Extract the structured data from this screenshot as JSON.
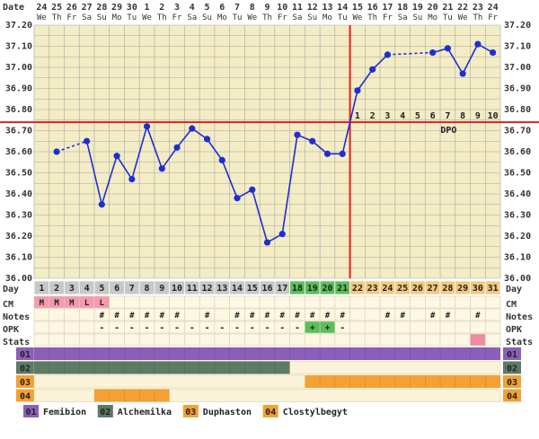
{
  "chart_data": {
    "type": "line",
    "corner_label": "Date",
    "dates": [
      {
        "num": "24",
        "dow": "We"
      },
      {
        "num": "25",
        "dow": "Th"
      },
      {
        "num": "26",
        "dow": "Fr"
      },
      {
        "num": "27",
        "dow": "Sa"
      },
      {
        "num": "28",
        "dow": "Su"
      },
      {
        "num": "29",
        "dow": "Mo"
      },
      {
        "num": "30",
        "dow": "Tu"
      },
      {
        "num": "1",
        "dow": "We"
      },
      {
        "num": "2",
        "dow": "Th"
      },
      {
        "num": "3",
        "dow": "Fr"
      },
      {
        "num": "4",
        "dow": "Sa"
      },
      {
        "num": "5",
        "dow": "Su"
      },
      {
        "num": "6",
        "dow": "Mo"
      },
      {
        "num": "7",
        "dow": "Tu"
      },
      {
        "num": "8",
        "dow": "We"
      },
      {
        "num": "9",
        "dow": "Th"
      },
      {
        "num": "10",
        "dow": "Fr"
      },
      {
        "num": "11",
        "dow": "Sa"
      },
      {
        "num": "12",
        "dow": "Su"
      },
      {
        "num": "13",
        "dow": "Mo"
      },
      {
        "num": "14",
        "dow": "Tu"
      },
      {
        "num": "15",
        "dow": "We"
      },
      {
        "num": "16",
        "dow": "Th"
      },
      {
        "num": "17",
        "dow": "Fr"
      },
      {
        "num": "18",
        "dow": "Sa"
      },
      {
        "num": "19",
        "dow": "Su"
      },
      {
        "num": "20",
        "dow": "Mo"
      },
      {
        "num": "21",
        "dow": "Tu"
      },
      {
        "num": "22",
        "dow": "We"
      },
      {
        "num": "23",
        "dow": "Th"
      },
      {
        "num": "24",
        "dow": "Fr"
      }
    ],
    "ylim": [
      36.0,
      37.2
    ],
    "y_ticks": [
      "36.00",
      "36.10",
      "36.20",
      "36.30",
      "36.40",
      "36.50",
      "36.60",
      "36.70",
      "36.80",
      "36.90",
      "37.00",
      "37.10",
      "37.20"
    ],
    "temperatures": [
      null,
      36.6,
      null,
      36.65,
      36.35,
      36.58,
      36.47,
      36.72,
      36.52,
      36.62,
      36.71,
      36.66,
      36.56,
      36.38,
      36.42,
      36.17,
      36.21,
      36.68,
      36.65,
      36.59,
      36.59,
      36.89,
      36.99,
      37.06,
      null,
      null,
      37.07,
      37.09,
      36.97,
      37.11,
      37.07
    ],
    "coverline": 36.74,
    "ovulation_day": 21,
    "dpo_label": "DPO",
    "dpo_numbers": [
      "1",
      "2",
      "3",
      "4",
      "5",
      "6",
      "7",
      "8",
      "9",
      "10"
    ],
    "row_labels": {
      "day": "Day",
      "cm": "CM",
      "notes": "Notes",
      "opk": "OPK",
      "stats": "Stats"
    },
    "cycle_days": [
      "1",
      "2",
      "3",
      "4",
      "5",
      "6",
      "7",
      "8",
      "9",
      "10",
      "11",
      "12",
      "13",
      "14",
      "15",
      "16",
      "17",
      "18",
      "19",
      "20",
      "21",
      "22",
      "23",
      "24",
      "25",
      "26",
      "27",
      "28",
      "29",
      "30",
      "31"
    ],
    "cm": [
      "M",
      "M",
      "M",
      "L",
      "L",
      "",
      "",
      "",
      "",
      "",
      "",
      "",
      "",
      "",
      "",
      "",
      "",
      "",
      "",
      "",
      "",
      "",
      "",
      "",
      "",
      "",
      "",
      "",
      "",
      "",
      ""
    ],
    "notes": [
      "",
      "",
      "",
      "",
      "#",
      "#",
      "#",
      "#",
      "#",
      "#",
      "",
      "#",
      "",
      "#",
      "#",
      "#",
      "#",
      "#",
      "#",
      "#",
      "#",
      "",
      "",
      "#",
      "#",
      "",
      "#",
      "#",
      "",
      "#",
      ""
    ],
    "opk": [
      "",
      "",
      "",
      "",
      "-",
      "-",
      "-",
      "-",
      "-",
      "-",
      "-",
      "-",
      "-",
      "-",
      "-",
      "-",
      "-",
      "-",
      "+",
      "+",
      "-",
      "",
      "",
      "",
      "",
      "",
      "",
      "",
      "",
      "",
      ""
    ],
    "stats_marked_day": 30,
    "medications": [
      {
        "id": "01",
        "name": "Femibion",
        "color": "#8b5fb8",
        "start": 1,
        "end": 31
      },
      {
        "id": "02",
        "name": "Alchemilka",
        "color": "#5d7a66",
        "start": 1,
        "end": 17
      },
      {
        "id": "03",
        "name": "Duphaston",
        "color": "#f4a033",
        "start": 19,
        "end": 31
      },
      {
        "id": "04",
        "name": "Clostylbegyt",
        "color": "#f4a033",
        "start": 5,
        "end": 9
      }
    ],
    "colors": {
      "grid_bg": "#f3ecc4",
      "grid_line": "#a7a7a7",
      "line": "#1e2ed2",
      "coverline": "#dd2222",
      "day_pre": "#c8c8c8",
      "day_fertile": "#5abf5a",
      "day_post": "#f4c880",
      "cm_mark": "#f49ab0",
      "opk_pos": "#5abf5a",
      "stats_mark": "#f08aa0",
      "row_bg": "#fdf7e4"
    }
  }
}
